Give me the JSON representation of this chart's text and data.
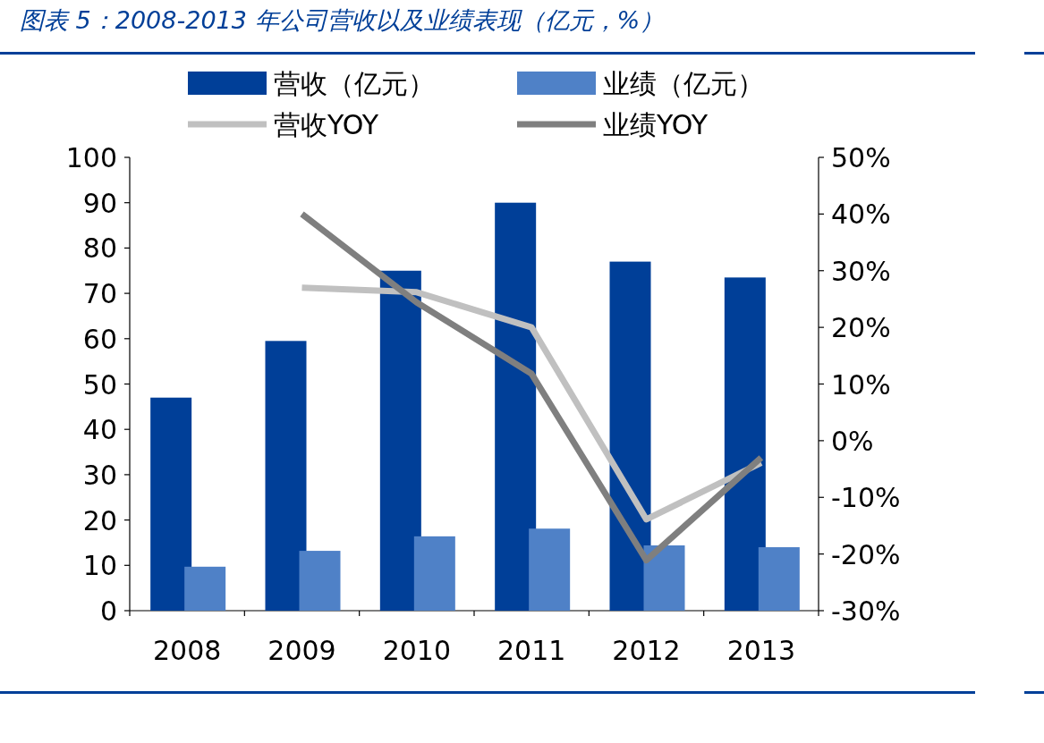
{
  "chart_data": {
    "type": "bar",
    "title": "图表 5：2008-2013 年公司营收以及业绩表现（亿元，%）",
    "categories": [
      "2008",
      "2009",
      "2010",
      "2011",
      "2012",
      "2013"
    ],
    "series": [
      {
        "name": "营收（亿元）",
        "color": "#003f98",
        "values": [
          47,
          59.5,
          75,
          90,
          77,
          73.5
        ]
      },
      {
        "name": "业绩（亿元）",
        "color": "#4f81c7",
        "values": [
          9.7,
          13.2,
          16.4,
          18.1,
          14.4,
          14.0
        ]
      },
      {
        "name": "营收YOY",
        "type": "line",
        "axis": "y2",
        "color": "#c0c0c0",
        "values": [
          null,
          27,
          26.2,
          20,
          -13.9,
          -3.9
        ]
      },
      {
        "name": "业绩YOY",
        "type": "line",
        "axis": "y2",
        "color": "#7f7f7f",
        "values": [
          null,
          40,
          24.4,
          11.8,
          -21.1,
          -3.0
        ]
      }
    ],
    "ylim": [
      0,
      100
    ],
    "yticks": [
      0,
      10,
      20,
      30,
      40,
      50,
      60,
      70,
      80,
      90,
      100
    ],
    "y2lim": [
      -30,
      50
    ],
    "y2ticks": [
      {
        "value": -30,
        "label": "-30%"
      },
      {
        "value": -20,
        "label": "-20%"
      },
      {
        "value": -10,
        "label": "-10%"
      },
      {
        "value": 0,
        "label": "0%"
      },
      {
        "value": 10,
        "label": "10%"
      },
      {
        "value": 20,
        "label": "20%"
      },
      {
        "value": 30,
        "label": "30%"
      },
      {
        "value": 40,
        "label": "40%"
      },
      {
        "value": 50,
        "label": "50%"
      }
    ],
    "legend": "top",
    "marker": "none"
  }
}
